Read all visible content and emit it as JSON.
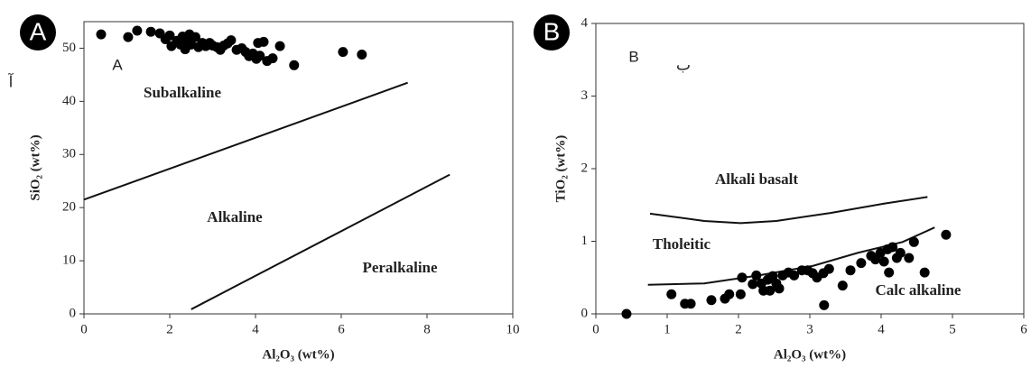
{
  "chart_data": [
    {
      "type": "scatter",
      "panel_label": "A",
      "x_label": "Al₂O₃ (wt%)",
      "y_label": "SiO₂ (wt%)",
      "xlim": [
        0,
        10
      ],
      "ylim": [
        0,
        55
      ],
      "xticks": [
        0,
        2,
        4,
        6,
        8,
        10
      ],
      "yticks": [
        0,
        10,
        20,
        30,
        40,
        50
      ],
      "annotations": [
        "Subalkaline",
        "Alkaline",
        "Peralkaline",
        "A",
        "آ"
      ],
      "boundaries": [
        {
          "x": [
            0,
            7.55
          ],
          "y": [
            21.5,
            43.5
          ]
        },
        {
          "x": [
            2.5,
            8.53
          ],
          "y": [
            0.86,
            26.2
          ]
        }
      ],
      "series": [
        {
          "color": "#000000",
          "x": [
            0.4,
            1.03,
            1.24,
            1.56,
            1.77,
            1.9,
            2.0,
            2.04,
            2.17,
            2.25,
            2.3,
            2.36,
            2.4,
            2.46,
            2.5,
            2.6,
            2.67,
            2.76,
            2.84,
            2.93,
            3.0,
            3.1,
            3.18,
            3.26,
            3.35,
            3.43,
            3.56,
            3.68,
            3.77,
            3.85,
            3.94,
            4.02,
            4.06,
            4.1,
            4.19,
            4.27,
            4.4,
            4.57,
            4.9,
            6.04,
            6.48
          ],
          "values": [
            52.6,
            52.1,
            53.3,
            53.1,
            52.8,
            51.7,
            52.4,
            50.4,
            51.4,
            50.7,
            52.2,
            49.8,
            51.5,
            52.6,
            50.7,
            52.1,
            50.2,
            51.0,
            50.4,
            51.0,
            50.5,
            50.2,
            49.7,
            50.5,
            50.9,
            51.5,
            49.7,
            50.0,
            49.3,
            48.5,
            49.0,
            48.0,
            51.0,
            48.6,
            51.2,
            47.6,
            48.1,
            50.4,
            46.8,
            49.3,
            48.8
          ]
        }
      ]
    },
    {
      "type": "scatter",
      "panel_label": "B",
      "x_label": "Al₂O₃ (wt%)",
      "y_label": "TiO₂ (wt%)",
      "xlim": [
        0,
        6
      ],
      "ylim": [
        0,
        4
      ],
      "xticks": [
        0,
        1,
        2,
        3,
        4,
        5,
        6
      ],
      "yticks": [
        0,
        1,
        2,
        3,
        4
      ],
      "annotations": [
        "Alkali basalt",
        "Tholeitic",
        "Calc alkaline",
        "B",
        "ب"
      ],
      "boundaries": [
        {
          "x": [
            0.76,
            1.52,
            2.03,
            2.53,
            3.29,
            4.05,
            4.65
          ],
          "y": [
            1.38,
            1.28,
            1.25,
            1.28,
            1.39,
            1.52,
            1.61
          ]
        },
        {
          "x": [
            0.73,
            1.52,
            2.28,
            3.04,
            3.67,
            4.3,
            4.75
          ],
          "y": [
            0.4,
            0.42,
            0.53,
            0.66,
            0.84,
            0.99,
            1.19
          ]
        }
      ],
      "series": [
        {
          "color": "#000000",
          "x": [
            0.43,
            1.06,
            1.25,
            1.33,
            1.62,
            1.81,
            1.87,
            2.03,
            2.05,
            2.2,
            2.25,
            2.32,
            2.35,
            2.41,
            2.44,
            2.48,
            2.53,
            2.57,
            2.62,
            2.7,
            2.78,
            2.89,
            2.97,
            3.04,
            3.1,
            3.19,
            3.2,
            3.27,
            3.46,
            3.57,
            3.72,
            3.86,
            3.92,
            3.99,
            4.04,
            4.09,
            4.11,
            4.16,
            4.22,
            4.27,
            4.39,
            4.46,
            4.61,
            4.91
          ],
          "values": [
            0,
            0.27,
            0.14,
            0.14,
            0.19,
            0.21,
            0.27,
            0.27,
            0.5,
            0.41,
            0.53,
            0.42,
            0.32,
            0.47,
            0.32,
            0.52,
            0.42,
            0.35,
            0.53,
            0.57,
            0.53,
            0.6,
            0.6,
            0.56,
            0.5,
            0.56,
            0.12,
            0.62,
            0.39,
            0.6,
            0.7,
            0.8,
            0.75,
            0.84,
            0.72,
            0.89,
            0.57,
            0.92,
            0.77,
            0.84,
            0.77,
            0.99,
            0.57,
            1.09
          ]
        }
      ]
    }
  ]
}
